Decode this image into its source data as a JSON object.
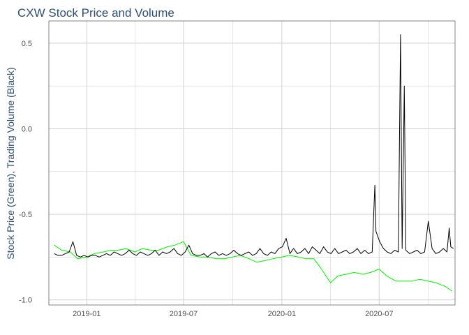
{
  "chart_data": {
    "type": "line",
    "title": "CXW Stock Price and Volume",
    "xlabel": "",
    "ylabel": "Stock Price (Green), Trading Volume (Black)",
    "x_ticks": [
      "2019-01",
      "2019-07",
      "2020-01",
      "2020-07"
    ],
    "y_ticks": [
      "-1.0",
      "-0.5",
      "0.0",
      "0.5"
    ],
    "xlim": [
      "2018-10-22",
      "2020-11-20"
    ],
    "ylim": [
      -1.03,
      0.63
    ],
    "grid": true,
    "colors": {
      "price": "#00EE00",
      "volume": "#000000",
      "grid": "#cccccc",
      "title": "#2F4F6F"
    },
    "series": [
      {
        "key": "price",
        "color": "#00EE00",
        "x": [
          "2018-11-01",
          "2018-11-15",
          "2018-12-01",
          "2018-12-15",
          "2019-01-01",
          "2019-01-15",
          "2019-02-01",
          "2019-02-15",
          "2019-03-01",
          "2019-03-15",
          "2019-04-01",
          "2019-04-15",
          "2019-05-01",
          "2019-05-15",
          "2019-06-01",
          "2019-06-15",
          "2019-07-01",
          "2019-07-15",
          "2019-08-01",
          "2019-08-15",
          "2019-09-01",
          "2019-09-15",
          "2019-10-01",
          "2019-10-15",
          "2019-11-01",
          "2019-11-15",
          "2019-12-01",
          "2019-12-15",
          "2020-01-01",
          "2020-01-15",
          "2020-02-01",
          "2020-02-15",
          "2020-03-01",
          "2020-03-15",
          "2020-04-01",
          "2020-04-15",
          "2020-05-01",
          "2020-05-15",
          "2020-06-01",
          "2020-06-15",
          "2020-07-01",
          "2020-07-15",
          "2020-08-01",
          "2020-08-15",
          "2020-09-01",
          "2020-09-15",
          "2020-10-01",
          "2020-10-15",
          "2020-11-01",
          "2020-11-15"
        ],
        "values": [
          -0.68,
          -0.71,
          -0.72,
          -0.76,
          -0.75,
          -0.73,
          -0.72,
          -0.71,
          -0.71,
          -0.7,
          -0.72,
          -0.7,
          -0.71,
          -0.71,
          -0.69,
          -0.68,
          -0.66,
          -0.74,
          -0.75,
          -0.75,
          -0.76,
          -0.76,
          -0.75,
          -0.74,
          -0.76,
          -0.78,
          -0.77,
          -0.76,
          -0.75,
          -0.74,
          -0.75,
          -0.76,
          -0.76,
          -0.82,
          -0.9,
          -0.86,
          -0.85,
          -0.84,
          -0.85,
          -0.84,
          -0.82,
          -0.86,
          -0.89,
          -0.89,
          -0.89,
          -0.88,
          -0.89,
          -0.9,
          -0.92,
          -0.95
        ]
      },
      {
        "key": "volume",
        "color": "#000000",
        "x": [
          "2018-11-01",
          "2018-11-08",
          "2018-11-15",
          "2018-11-22",
          "2018-11-29",
          "2018-12-06",
          "2018-12-13",
          "2018-12-20",
          "2018-12-27",
          "2019-01-03",
          "2019-01-10",
          "2019-01-17",
          "2019-01-24",
          "2019-01-31",
          "2019-02-07",
          "2019-02-14",
          "2019-02-21",
          "2019-02-28",
          "2019-03-07",
          "2019-03-14",
          "2019-03-21",
          "2019-03-28",
          "2019-04-04",
          "2019-04-11",
          "2019-04-18",
          "2019-04-25",
          "2019-05-02",
          "2019-05-09",
          "2019-05-16",
          "2019-05-23",
          "2019-05-30",
          "2019-06-06",
          "2019-06-13",
          "2019-06-20",
          "2019-06-27",
          "2019-07-04",
          "2019-07-11",
          "2019-07-18",
          "2019-07-25",
          "2019-08-01",
          "2019-08-08",
          "2019-08-15",
          "2019-08-22",
          "2019-08-29",
          "2019-09-05",
          "2019-09-12",
          "2019-09-19",
          "2019-09-26",
          "2019-10-03",
          "2019-10-10",
          "2019-10-17",
          "2019-10-24",
          "2019-10-31",
          "2019-11-07",
          "2019-11-14",
          "2019-11-21",
          "2019-11-28",
          "2019-12-05",
          "2019-12-12",
          "2019-12-19",
          "2019-12-26",
          "2020-01-02",
          "2020-01-09",
          "2020-01-16",
          "2020-01-23",
          "2020-01-30",
          "2020-02-06",
          "2020-02-13",
          "2020-02-20",
          "2020-02-27",
          "2020-03-05",
          "2020-03-12",
          "2020-03-19",
          "2020-03-26",
          "2020-04-02",
          "2020-04-09",
          "2020-04-16",
          "2020-04-23",
          "2020-04-30",
          "2020-05-07",
          "2020-05-14",
          "2020-05-21",
          "2020-05-28",
          "2020-06-04",
          "2020-06-11",
          "2020-06-18",
          "2020-06-23",
          "2020-06-25",
          "2020-07-02",
          "2020-07-09",
          "2020-07-16",
          "2020-07-23",
          "2020-07-30",
          "2020-08-06",
          "2020-08-10",
          "2020-08-13",
          "2020-08-17",
          "2020-08-20",
          "2020-08-27",
          "2020-09-03",
          "2020-09-10",
          "2020-09-17",
          "2020-09-24",
          "2020-10-01",
          "2020-10-08",
          "2020-10-15",
          "2020-10-22",
          "2020-10-29",
          "2020-11-05",
          "2020-11-09",
          "2020-11-12",
          "2020-11-17"
        ],
        "values": [
          -0.73,
          -0.74,
          -0.74,
          -0.73,
          -0.72,
          -0.66,
          -0.74,
          -0.75,
          -0.74,
          -0.75,
          -0.74,
          -0.74,
          -0.75,
          -0.74,
          -0.73,
          -0.74,
          -0.72,
          -0.73,
          -0.74,
          -0.73,
          -0.71,
          -0.73,
          -0.74,
          -0.72,
          -0.73,
          -0.74,
          -0.73,
          -0.71,
          -0.74,
          -0.72,
          -0.73,
          -0.72,
          -0.7,
          -0.73,
          -0.74,
          -0.72,
          -0.68,
          -0.73,
          -0.74,
          -0.74,
          -0.73,
          -0.75,
          -0.73,
          -0.72,
          -0.74,
          -0.73,
          -0.74,
          -0.73,
          -0.71,
          -0.73,
          -0.74,
          -0.73,
          -0.72,
          -0.74,
          -0.73,
          -0.7,
          -0.73,
          -0.74,
          -0.72,
          -0.73,
          -0.7,
          -0.69,
          -0.64,
          -0.73,
          -0.7,
          -0.73,
          -0.72,
          -0.7,
          -0.73,
          -0.69,
          -0.71,
          -0.73,
          -0.69,
          -0.72,
          -0.73,
          -0.7,
          -0.73,
          -0.72,
          -0.71,
          -0.73,
          -0.72,
          -0.7,
          -0.73,
          -0.71,
          -0.73,
          -0.72,
          -0.33,
          -0.6,
          -0.66,
          -0.7,
          -0.72,
          -0.73,
          -0.71,
          -0.72,
          0.55,
          -0.7,
          0.25,
          -0.71,
          -0.73,
          -0.72,
          -0.71,
          -0.73,
          -0.72,
          -0.54,
          -0.7,
          -0.73,
          -0.72,
          -0.7,
          -0.72,
          -0.58,
          -0.69,
          -0.7
        ]
      }
    ]
  }
}
